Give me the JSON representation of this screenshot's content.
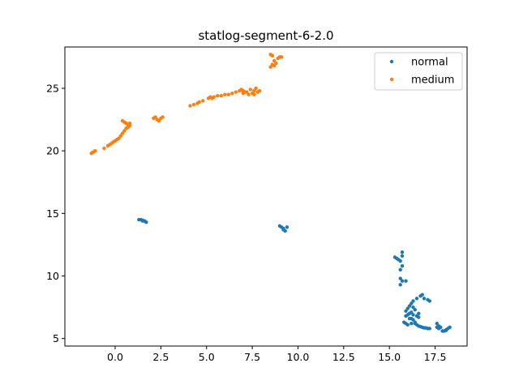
{
  "chart_data": {
    "type": "scatter",
    "title": "statlog-segment-6-2.0",
    "xlabel": "",
    "ylabel": "",
    "xlim": [
      -2.75,
      19.25
    ],
    "ylim": [
      4.4,
      28.3
    ],
    "xticks": [
      0.0,
      2.5,
      5.0,
      7.5,
      10.0,
      12.5,
      15.0,
      17.5
    ],
    "xtick_labels": [
      "0.0",
      "2.5",
      "5.0",
      "7.5",
      "10.0",
      "12.5",
      "15.0",
      "17.5"
    ],
    "yticks": [
      5,
      10,
      15,
      20,
      25
    ],
    "ytick_labels": [
      "5",
      "10",
      "15",
      "20",
      "25"
    ],
    "grid": false,
    "legend_position": "top-right",
    "series": [
      {
        "name": "normal",
        "color": "#1f77b4",
        "points": [
          [
            1.3,
            14.5
          ],
          [
            1.4,
            14.5
          ],
          [
            1.5,
            14.4
          ],
          [
            1.6,
            14.4
          ],
          [
            1.7,
            14.3
          ],
          [
            1.5,
            14.45
          ],
          [
            1.65,
            14.35
          ],
          [
            9.0,
            14.0
          ],
          [
            9.1,
            13.9
          ],
          [
            9.2,
            13.8
          ],
          [
            9.3,
            13.6
          ],
          [
            9.4,
            13.9
          ],
          [
            9.2,
            13.7
          ],
          [
            15.3,
            11.5
          ],
          [
            15.4,
            11.4
          ],
          [
            15.5,
            11.3
          ],
          [
            15.6,
            11.2
          ],
          [
            15.7,
            11.9
          ],
          [
            15.7,
            11.6
          ],
          [
            15.6,
            10.5
          ],
          [
            15.7,
            10.8
          ],
          [
            15.6,
            9.8
          ],
          [
            15.7,
            9.6
          ],
          [
            15.9,
            9.6
          ],
          [
            15.6,
            9.3
          ],
          [
            15.9,
            7.2
          ],
          [
            16.0,
            7.4
          ],
          [
            16.1,
            7.6
          ],
          [
            16.2,
            7.8
          ],
          [
            16.3,
            8.0
          ],
          [
            16.5,
            8.2
          ],
          [
            16.7,
            8.4
          ],
          [
            16.8,
            8.5
          ],
          [
            16.9,
            8.2
          ],
          [
            17.1,
            8.1
          ],
          [
            17.2,
            8.0
          ],
          [
            15.9,
            6.8
          ],
          [
            16.0,
            6.9
          ],
          [
            16.1,
            7.0
          ],
          [
            16.2,
            6.6
          ],
          [
            16.3,
            6.5
          ],
          [
            16.4,
            6.3
          ],
          [
            16.2,
            6.2
          ],
          [
            16.0,
            6.1
          ],
          [
            15.8,
            6.3
          ],
          [
            15.9,
            6.2
          ],
          [
            16.4,
            6.2
          ],
          [
            16.5,
            6.1
          ],
          [
            16.6,
            6.0
          ],
          [
            16.7,
            5.95
          ],
          [
            16.8,
            5.9
          ],
          [
            16.9,
            5.85
          ],
          [
            17.0,
            5.85
          ],
          [
            17.1,
            5.8
          ],
          [
            17.2,
            5.8
          ],
          [
            16.2,
            7.1
          ],
          [
            16.3,
            6.9
          ],
          [
            16.4,
            7.3
          ],
          [
            16.5,
            6.8
          ],
          [
            16.6,
            6.7
          ],
          [
            16.1,
            6.6
          ],
          [
            16.3,
            7.5
          ],
          [
            16.6,
            7.0
          ],
          [
            17.6,
            6.2
          ],
          [
            17.7,
            6.0
          ],
          [
            17.8,
            5.9
          ],
          [
            17.7,
            5.8
          ],
          [
            17.6,
            5.9
          ],
          [
            17.9,
            5.6
          ],
          [
            18.0,
            5.6
          ],
          [
            18.1,
            5.7
          ],
          [
            18.2,
            5.8
          ],
          [
            18.3,
            5.9
          ],
          [
            18.1,
            5.65
          ]
        ]
      },
      {
        "name": "medium",
        "color": "#ff7f0e",
        "points": [
          [
            -1.3,
            19.8
          ],
          [
            -1.2,
            19.9
          ],
          [
            -1.1,
            20.0
          ],
          [
            -1.25,
            19.85
          ],
          [
            -0.6,
            20.2
          ],
          [
            -0.4,
            20.4
          ],
          [
            -0.3,
            20.5
          ],
          [
            -0.2,
            20.6
          ],
          [
            -0.1,
            20.7
          ],
          [
            0.0,
            20.8
          ],
          [
            0.1,
            20.9
          ],
          [
            0.2,
            21.0
          ],
          [
            0.3,
            21.2
          ],
          [
            0.4,
            21.4
          ],
          [
            0.5,
            21.6
          ],
          [
            0.6,
            21.8
          ],
          [
            0.7,
            21.9
          ],
          [
            0.8,
            22.0
          ],
          [
            0.7,
            22.1
          ],
          [
            0.6,
            22.2
          ],
          [
            0.5,
            22.3
          ],
          [
            0.4,
            22.4
          ],
          [
            0.8,
            22.2
          ],
          [
            0.75,
            22.05
          ],
          [
            2.1,
            22.6
          ],
          [
            2.2,
            22.7
          ],
          [
            2.3,
            22.5
          ],
          [
            2.4,
            22.4
          ],
          [
            2.5,
            22.6
          ],
          [
            2.6,
            22.7
          ],
          [
            4.1,
            23.6
          ],
          [
            4.3,
            23.7
          ],
          [
            4.5,
            23.8
          ],
          [
            4.6,
            23.9
          ],
          [
            4.8,
            24.0
          ],
          [
            5.1,
            24.2
          ],
          [
            5.2,
            24.3
          ],
          [
            5.3,
            24.2
          ],
          [
            5.4,
            24.3
          ],
          [
            5.6,
            24.4
          ],
          [
            5.8,
            24.4
          ],
          [
            6.0,
            24.5
          ],
          [
            6.2,
            24.5
          ],
          [
            6.4,
            24.6
          ],
          [
            6.6,
            24.7
          ],
          [
            6.8,
            24.8
          ],
          [
            7.0,
            24.8
          ],
          [
            7.2,
            24.7
          ],
          [
            7.4,
            24.9
          ],
          [
            7.6,
            24.8
          ],
          [
            7.8,
            24.7
          ],
          [
            7.3,
            24.5
          ],
          [
            7.5,
            24.6
          ],
          [
            7.0,
            24.6
          ],
          [
            6.9,
            24.9
          ],
          [
            7.1,
            24.7
          ],
          [
            7.7,
            25.0
          ],
          [
            7.9,
            24.8
          ],
          [
            7.6,
            24.5
          ],
          [
            8.5,
            27.7
          ],
          [
            8.6,
            27.6
          ],
          [
            8.7,
            27.2
          ],
          [
            8.8,
            27.0
          ],
          [
            8.9,
            27.4
          ],
          [
            9.0,
            27.5
          ],
          [
            9.1,
            27.5
          ],
          [
            8.6,
            26.9
          ],
          [
            8.5,
            26.7
          ],
          [
            8.7,
            26.8
          ]
        ]
      }
    ]
  }
}
